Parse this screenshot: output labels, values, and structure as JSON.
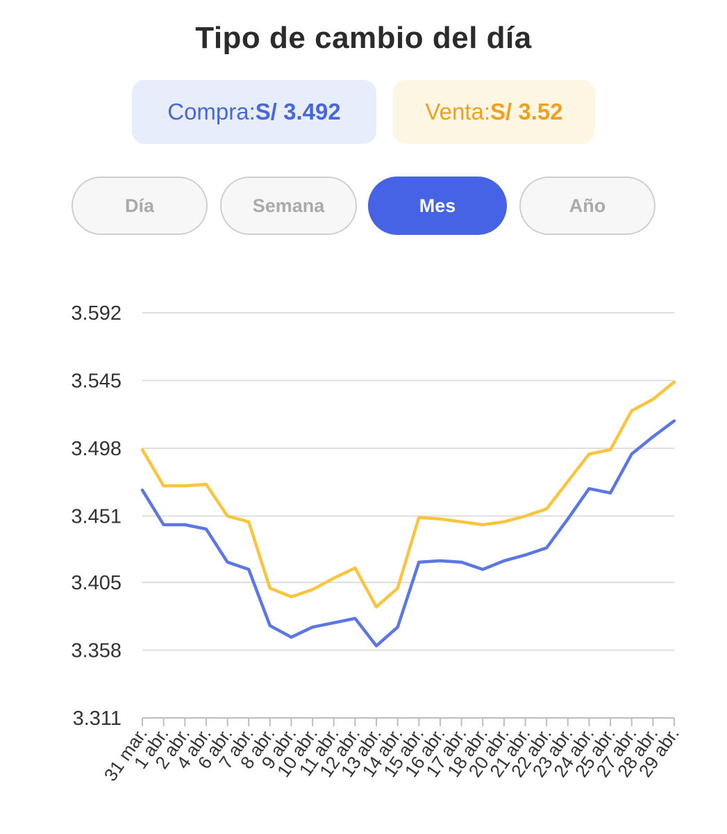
{
  "header": {
    "title": "Tipo de cambio del día"
  },
  "rates": {
    "buy": {
      "label": "Compra:",
      "value": "S/ 3.492"
    },
    "sell": {
      "label": "Venta:",
      "value": "S/ 3.52"
    }
  },
  "tabs": [
    {
      "label": "Día",
      "active": false
    },
    {
      "label": "Semana",
      "active": false
    },
    {
      "label": "Mes",
      "active": true
    },
    {
      "label": "Año",
      "active": false
    }
  ],
  "colors": {
    "buy": "#5b77e3",
    "sell": "#fbc43d",
    "grid": "#dedede",
    "active_tab": "#4563e4"
  },
  "chart_data": {
    "type": "line",
    "title": "",
    "xlabel": "",
    "ylabel": "",
    "x": [
      "31 mar.",
      "1 abr.",
      "2 abr.",
      "4 abr.",
      "6 abr.",
      "7 abr.",
      "8 abr.",
      "9 abr.",
      "10 abr.",
      "11 abr.",
      "12 abr.",
      "13 abr.",
      "14 abr.",
      "15 abr.",
      "16 abr.",
      "17 abr.",
      "18 abr.",
      "20 abr.",
      "21 abr.",
      "22 abr.",
      "23 abr.",
      "24 abr.",
      "25 abr.",
      "27 abr.",
      "28 abr.",
      "29 abr."
    ],
    "yticks": [
      "3.311",
      "3.358",
      "3.405",
      "3.451",
      "3.498",
      "3.545",
      "3.592"
    ],
    "ylim": [
      3.311,
      3.592
    ],
    "grid": true,
    "legend": "none",
    "series": [
      {
        "key": "sell",
        "color": "#fbc43d",
        "values": [
          3.497,
          3.472,
          3.472,
          3.473,
          3.451,
          3.447,
          3.401,
          3.395,
          3.4,
          3.408,
          3.415,
          3.388,
          3.401,
          3.45,
          3.449,
          3.447,
          3.445,
          3.447,
          3.451,
          3.456,
          3.475,
          3.494,
          3.497,
          3.524,
          3.532,
          3.544
        ]
      },
      {
        "key": "buy",
        "color": "#5b77e3",
        "values": [
          3.469,
          3.445,
          3.445,
          3.442,
          3.419,
          3.414,
          3.375,
          3.367,
          3.374,
          3.377,
          3.38,
          3.361,
          3.374,
          3.419,
          3.42,
          3.419,
          3.414,
          3.42,
          3.424,
          3.429,
          3.449,
          3.47,
          3.467,
          3.494,
          3.506,
          3.517
        ]
      }
    ]
  }
}
